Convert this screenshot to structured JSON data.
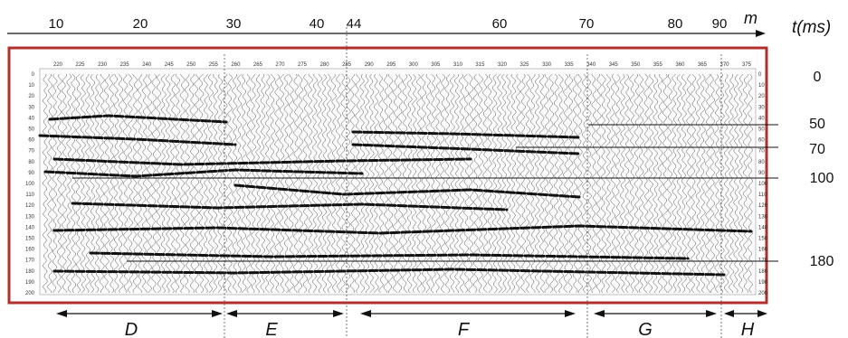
{
  "top_axis": {
    "unit": "m",
    "ticks": [
      "10",
      "20",
      "30",
      "40",
      "44",
      "60",
      "70",
      "80",
      "90"
    ]
  },
  "right_axis": {
    "unit": "t(ms)",
    "ticks": [
      "0",
      "50",
      "70",
      "100",
      "180"
    ]
  },
  "trace_labels_top": [
    "220",
    "225",
    "230",
    "235",
    "240",
    "245",
    "250",
    "255",
    "260",
    "265",
    "270",
    "275",
    "280",
    "285",
    "290",
    "295",
    "300",
    "305",
    "310",
    "315",
    "320",
    "325",
    "330",
    "335",
    "340",
    "345",
    "350",
    "355",
    "360",
    "365",
    "370",
    "375"
  ],
  "time_labels_left": [
    "0",
    "10",
    "20",
    "30",
    "40",
    "50",
    "60",
    "70",
    "80",
    "90",
    "100",
    "110",
    "120",
    "130",
    "140",
    "150",
    "160",
    "170",
    "180",
    "190",
    "200"
  ],
  "time_labels_right": [
    "0",
    "10",
    "20",
    "30",
    "40",
    "50",
    "60",
    "70",
    "80",
    "90",
    "100",
    "110",
    "120",
    "130",
    "140",
    "150",
    "160",
    "170",
    "180",
    "190",
    "200"
  ],
  "zones": [
    "D",
    "E",
    "F",
    "G",
    "H"
  ],
  "colors": {
    "frame": "#b0302e",
    "ink": "#111111",
    "panel": "#ffffff"
  }
}
